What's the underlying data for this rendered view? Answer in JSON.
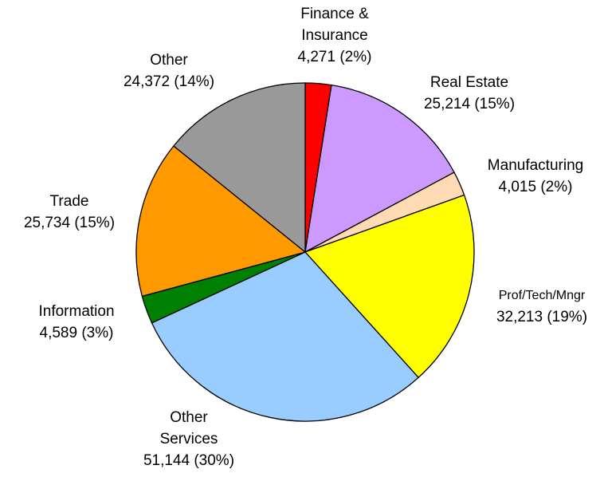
{
  "chart_data": {
    "type": "pie",
    "categories": [
      "Finance &\nInsurance",
      "Real Estate",
      "Manufacturing",
      "Prof/Tech/Mngr",
      "Other\nServices",
      "Information",
      "Trade",
      "Other"
    ],
    "values": [
      4271,
      25214,
      4015,
      32213,
      51144,
      4589,
      25734,
      24372
    ],
    "value_labels": [
      "4,271 (2%)",
      "25,214 (15%)",
      "4,015 (2%)",
      "32,213 (19%)",
      "51,144 (30%)",
      "4,589 (3%)",
      "25,734 (15%)",
      "24,372 (14%)"
    ],
    "colors": [
      "#ff0000",
      "#cc99ff",
      "#ffdab3",
      "#ffff00",
      "#99ccff",
      "#008000",
      "#ff9900",
      "#999999"
    ]
  }
}
